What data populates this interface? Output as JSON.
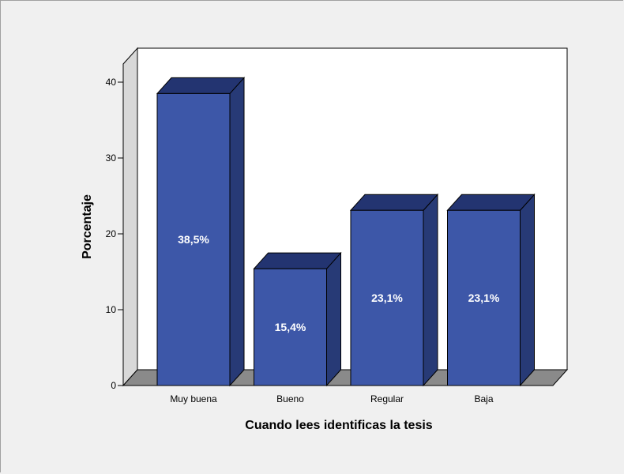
{
  "chart_data": {
    "type": "bar",
    "title": "",
    "xlabel": "Cuando lees identificas la tesis",
    "ylabel": "Porcentaje",
    "categories": [
      "Muy buena",
      "Bueno",
      "Regular",
      "Baja"
    ],
    "values": [
      38.5,
      15.4,
      23.1,
      23.1
    ],
    "data_labels": [
      "38,5%",
      "15,4%",
      "23,1%",
      "23,1%"
    ],
    "y_ticks": [
      0,
      10,
      20,
      30,
      40
    ],
    "ylim": [
      0,
      40
    ],
    "grid": false,
    "legend": "none",
    "style": "3d",
    "colors": {
      "bar_front": "#3d57a8",
      "bar_top": "#233471",
      "bar_side": "#273a76",
      "back_wall": "#ffffff",
      "side_wall": "#d8d8d8",
      "floor": "#8a8a8a",
      "background": "#f0f0f0"
    }
  }
}
